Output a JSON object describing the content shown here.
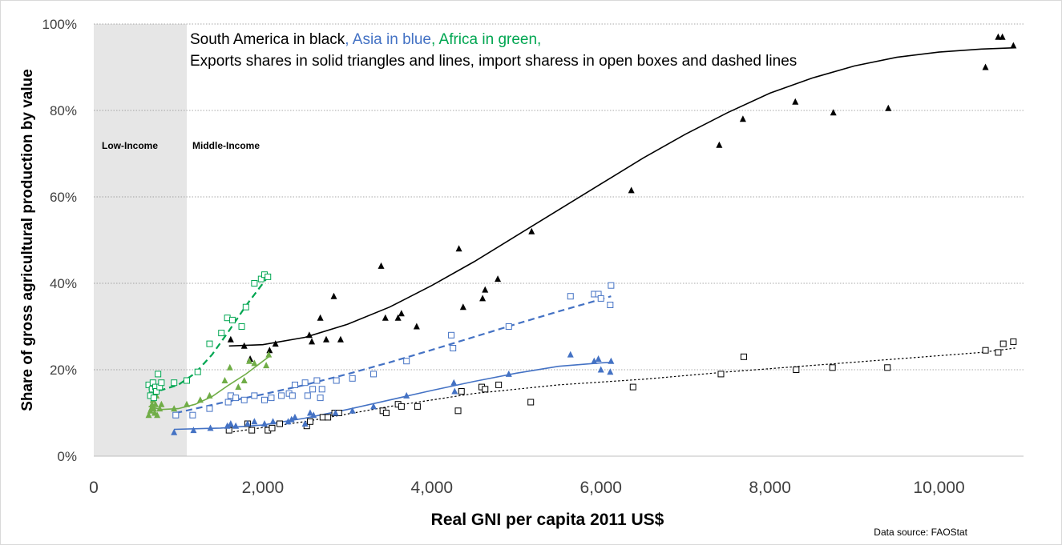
{
  "chart_data": {
    "type": "scatter",
    "title": "",
    "xlabel": "Real GNI per capita 2011 US$",
    "ylabel": "Share of gross agricultural production by value",
    "xlim": [
      0,
      11000
    ],
    "ylim": [
      0,
      100
    ],
    "x_ticks": [
      0,
      2000,
      4000,
      6000,
      8000,
      10000
    ],
    "x_tick_labels": [
      "0",
      "2,000",
      "4,000",
      "6,000",
      "8,000",
      "10,000"
    ],
    "y_ticks": [
      0,
      20,
      40,
      60,
      80,
      100
    ],
    "y_tick_labels": [
      "0%",
      "20%",
      "40%",
      "60%",
      "80%",
      "100%"
    ],
    "grid": "horizontal dotted",
    "annotation": {
      "line1_parts": [
        {
          "text": "South America in black",
          "color": "#000000"
        },
        {
          "text": ", Asia in blue",
          "color": "#4472c4"
        },
        {
          "text": ", Africa in green,",
          "color": "#00a651"
        }
      ],
      "line2": "Exports shares in solid triangles and lines, import sharess in open boxes and dashed lines"
    },
    "bands": [
      {
        "label": "Low-Income",
        "x_from": 0,
        "x_to": 1100,
        "shaded": true,
        "color": "#e6e6e6"
      },
      {
        "label": "Middle-Income",
        "x_from": 1100,
        "x_to": 11000,
        "shaded": false
      }
    ],
    "source": "Data source: FAOStat",
    "colors": {
      "south_america": "#000000",
      "asia": "#4472c4",
      "africa_exports": "#70ad47",
      "africa_imports": "#00a651"
    },
    "series": [
      {
        "region": "South America",
        "kind": "exports",
        "marker": "solid-triangle",
        "color": "#000000",
        "points": [
          [
            1620,
            27
          ],
          [
            1780,
            25.5
          ],
          [
            1850,
            22.5
          ],
          [
            2080,
            24.5
          ],
          [
            2150,
            26
          ],
          [
            2550,
            28
          ],
          [
            2580,
            26.5
          ],
          [
            2680,
            32
          ],
          [
            2750,
            27
          ],
          [
            2840,
            37
          ],
          [
            2920,
            27
          ],
          [
            3400,
            44
          ],
          [
            3450,
            32
          ],
          [
            3600,
            32
          ],
          [
            3640,
            33
          ],
          [
            3820,
            30
          ],
          [
            4320,
            48
          ],
          [
            4370,
            34.5
          ],
          [
            4600,
            36.5
          ],
          [
            4630,
            38.5
          ],
          [
            4780,
            41
          ],
          [
            5180,
            52
          ],
          [
            6360,
            61.5
          ],
          [
            7400,
            72
          ],
          [
            7680,
            78
          ],
          [
            8300,
            82
          ],
          [
            8750,
            79.5
          ],
          [
            9400,
            80.5
          ],
          [
            10550,
            90
          ],
          [
            10700,
            97
          ],
          [
            10750,
            97
          ],
          [
            10880,
            95
          ]
        ],
        "trend": {
          "style": "solid",
          "points": [
            [
              1600,
              25.5
            ],
            [
              2000,
              25.8
            ],
            [
              2500,
              27.5
            ],
            [
              3000,
              30.5
            ],
            [
              3500,
              34.5
            ],
            [
              4000,
              39.5
            ],
            [
              4500,
              45
            ],
            [
              5000,
              51
            ],
            [
              5500,
              57
            ],
            [
              6000,
              63
            ],
            [
              6500,
              69
            ],
            [
              7000,
              74.5
            ],
            [
              7500,
              79.5
            ],
            [
              8000,
              84
            ],
            [
              8500,
              87.5
            ],
            [
              9000,
              90.3
            ],
            [
              9500,
              92.3
            ],
            [
              10000,
              93.5
            ],
            [
              10500,
              94.2
            ],
            [
              10900,
              94.5
            ]
          ]
        }
      },
      {
        "region": "South America",
        "kind": "imports",
        "marker": "open-box",
        "color": "#000000",
        "points": [
          [
            1600,
            6
          ],
          [
            1820,
            7.5
          ],
          [
            1870,
            6
          ],
          [
            2060,
            6
          ],
          [
            2110,
            6.5
          ],
          [
            2200,
            7.5
          ],
          [
            2520,
            7
          ],
          [
            2560,
            8
          ],
          [
            2710,
            9
          ],
          [
            2770,
            9
          ],
          [
            2850,
            10
          ],
          [
            2900,
            10
          ],
          [
            3420,
            10.5
          ],
          [
            3460,
            10
          ],
          [
            3600,
            12
          ],
          [
            3640,
            11.5
          ],
          [
            3830,
            11.5
          ],
          [
            4310,
            10.5
          ],
          [
            4350,
            15
          ],
          [
            4590,
            16
          ],
          [
            4630,
            15.5
          ],
          [
            4790,
            16.5
          ],
          [
            5170,
            12.5
          ],
          [
            6380,
            16
          ],
          [
            7420,
            19
          ],
          [
            7690,
            23
          ],
          [
            8310,
            20
          ],
          [
            8740,
            20.5
          ],
          [
            9390,
            20.5
          ],
          [
            10550,
            24.5
          ],
          [
            10700,
            24
          ],
          [
            10760,
            26
          ],
          [
            10880,
            26.5
          ]
        ],
        "trend": {
          "style": "dotted",
          "points": [
            [
              1600,
              5.5
            ],
            [
              2500,
              8
            ],
            [
              3500,
              11.5
            ],
            [
              4500,
              14.5
            ],
            [
              5500,
              16.5
            ],
            [
              6500,
              17.8
            ],
            [
              7500,
              19.5
            ],
            [
              8500,
              21
            ],
            [
              9500,
              22.5
            ],
            [
              10500,
              24
            ],
            [
              10900,
              25
            ]
          ]
        }
      },
      {
        "region": "Asia",
        "kind": "exports",
        "marker": "solid-triangle",
        "color": "#4472c4",
        "points": [
          [
            950,
            5.5
          ],
          [
            1180,
            6
          ],
          [
            1380,
            6.5
          ],
          [
            1580,
            7
          ],
          [
            1620,
            7.5
          ],
          [
            1680,
            7
          ],
          [
            1820,
            7.5
          ],
          [
            1900,
            8
          ],
          [
            2020,
            7.5
          ],
          [
            2120,
            8
          ],
          [
            2300,
            8
          ],
          [
            2340,
            8.5
          ],
          [
            2380,
            9
          ],
          [
            2500,
            7.5
          ],
          [
            2560,
            10
          ],
          [
            2600,
            9.5
          ],
          [
            2860,
            10
          ],
          [
            3060,
            10.5
          ],
          [
            3310,
            11.5
          ],
          [
            3700,
            14
          ],
          [
            4260,
            17
          ],
          [
            4270,
            15
          ],
          [
            4910,
            19
          ],
          [
            5640,
            23.5
          ],
          [
            5920,
            22
          ],
          [
            5970,
            22.5
          ],
          [
            6000,
            20
          ],
          [
            6110,
            19.5
          ],
          [
            6120,
            22
          ]
        ],
        "trend": {
          "style": "solid",
          "points": [
            [
              950,
              6.2
            ],
            [
              1500,
              6.5
            ],
            [
              2000,
              7.2
            ],
            [
              2500,
              8.8
            ],
            [
              3000,
              10.8
            ],
            [
              3500,
              13
            ],
            [
              4000,
              15.2
            ],
            [
              4500,
              17.3
            ],
            [
              5000,
              19.2
            ],
            [
              5500,
              20.8
            ],
            [
              6000,
              21.6
            ],
            [
              6120,
              21.7
            ]
          ]
        }
      },
      {
        "region": "Asia",
        "kind": "imports",
        "marker": "open-box",
        "color": "#4472c4",
        "points": [
          [
            970,
            9.5
          ],
          [
            1170,
            9.5
          ],
          [
            1370,
            11
          ],
          [
            1590,
            12.5
          ],
          [
            1620,
            14
          ],
          [
            1680,
            13.5
          ],
          [
            1780,
            13
          ],
          [
            1900,
            14
          ],
          [
            2020,
            13
          ],
          [
            2100,
            13.5
          ],
          [
            2220,
            14
          ],
          [
            2310,
            14.5
          ],
          [
            2350,
            14
          ],
          [
            2380,
            16.5
          ],
          [
            2500,
            17
          ],
          [
            2530,
            14
          ],
          [
            2590,
            15.5
          ],
          [
            2640,
            17.5
          ],
          [
            2680,
            13.5
          ],
          [
            2700,
            15.5
          ],
          [
            2870,
            17.5
          ],
          [
            3060,
            18
          ],
          [
            3310,
            19
          ],
          [
            3700,
            22
          ],
          [
            4230,
            28
          ],
          [
            4250,
            25
          ],
          [
            4910,
            30
          ],
          [
            5640,
            37
          ],
          [
            5920,
            37.5
          ],
          [
            5970,
            37.5
          ],
          [
            6000,
            36.5
          ],
          [
            6110,
            35
          ],
          [
            6120,
            39.5
          ]
        ],
        "trend": {
          "style": "dashed",
          "points": [
            [
              970,
              10
            ],
            [
              1500,
              12.3
            ],
            [
              2000,
              14.3
            ],
            [
              2500,
              16.5
            ],
            [
              3000,
              19
            ],
            [
              3500,
              21.7
            ],
            [
              4000,
              24.6
            ],
            [
              4500,
              27.6
            ],
            [
              5000,
              30.6
            ],
            [
              5500,
              33.5
            ],
            [
              6000,
              36.3
            ],
            [
              6120,
              37
            ]
          ]
        }
      },
      {
        "region": "Africa",
        "kind": "exports",
        "marker": "solid-triangle",
        "color": "#70ad47",
        "points": [
          [
            650,
            9.5
          ],
          [
            670,
            10.5
          ],
          [
            680,
            11
          ],
          [
            690,
            12
          ],
          [
            700,
            13
          ],
          [
            710,
            11
          ],
          [
            720,
            10
          ],
          [
            730,
            12
          ],
          [
            740,
            14
          ],
          [
            750,
            9.5
          ],
          [
            780,
            11
          ],
          [
            800,
            12
          ],
          [
            950,
            11
          ],
          [
            1100,
            12
          ],
          [
            1260,
            13
          ],
          [
            1370,
            14
          ],
          [
            1550,
            17.5
          ],
          [
            1610,
            20.5
          ],
          [
            1710,
            16
          ],
          [
            1780,
            17.5
          ],
          [
            1840,
            22
          ],
          [
            1900,
            21.5
          ],
          [
            2040,
            21
          ],
          [
            2070,
            23.5
          ]
        ],
        "trend": {
          "style": "solid",
          "points": [
            [
              650,
              11.5
            ],
            [
              800,
              10.8
            ],
            [
              1000,
              11
            ],
            [
              1200,
              12
            ],
            [
              1400,
              13.8
            ],
            [
              1600,
              16.5
            ],
            [
              1800,
              19
            ],
            [
              2070,
              23
            ]
          ]
        }
      },
      {
        "region": "Africa",
        "kind": "imports",
        "marker": "open-box",
        "color": "#00a651",
        "points": [
          [
            650,
            16.5
          ],
          [
            670,
            14
          ],
          [
            690,
            15.5
          ],
          [
            700,
            17
          ],
          [
            710,
            13.5
          ],
          [
            730,
            16
          ],
          [
            740,
            15
          ],
          [
            760,
            19
          ],
          [
            780,
            16
          ],
          [
            800,
            17
          ],
          [
            950,
            17
          ],
          [
            1100,
            17.5
          ],
          [
            1230,
            19.5
          ],
          [
            1370,
            26
          ],
          [
            1510,
            28.5
          ],
          [
            1580,
            32
          ],
          [
            1640,
            31.5
          ],
          [
            1750,
            30
          ],
          [
            1800,
            34.5
          ],
          [
            1900,
            40
          ],
          [
            1980,
            41
          ],
          [
            2020,
            42
          ],
          [
            2060,
            41.5
          ]
        ],
        "trend": {
          "style": "dashed",
          "points": [
            [
              650,
              15.5
            ],
            [
              800,
              15.3
            ],
            [
              1000,
              16.5
            ],
            [
              1200,
              19.2
            ],
            [
              1400,
              23.5
            ],
            [
              1600,
              29
            ],
            [
              1800,
              34.8
            ],
            [
              2060,
              41.5
            ]
          ]
        }
      }
    ]
  }
}
